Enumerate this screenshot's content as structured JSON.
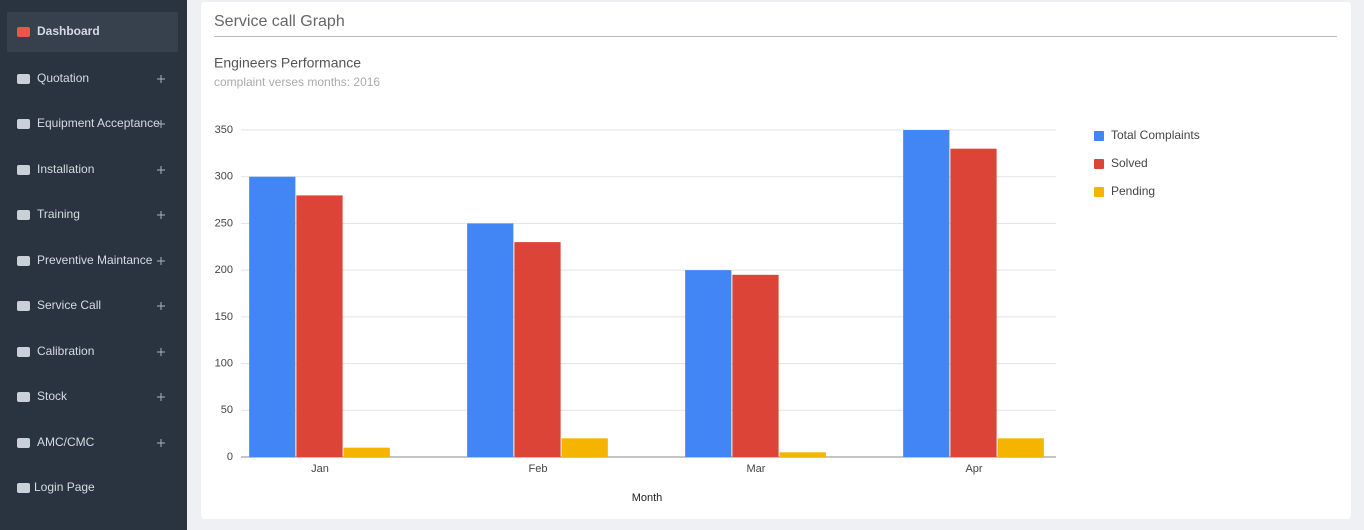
{
  "sidebar": {
    "items": [
      "Dashboard",
      "Quotation",
      "Equipment Acceptance",
      "Installation",
      "Training",
      "Preventive Maintance",
      "Service Call",
      "Calibration",
      "Stock",
      "AMC/CMC",
      "Login Page"
    ]
  },
  "panel": {
    "title": "Service call Graph"
  },
  "chart_data": {
    "type": "bar",
    "title": "Engineers Performance",
    "subtitle": "complaint verses months: 2016",
    "x_label": "Month",
    "categories": [
      "Jan",
      "Feb",
      "Mar",
      "Apr"
    ],
    "series": [
      {
        "name": "Total Complaints",
        "color": "#4285f4",
        "values": [
          300,
          250,
          200,
          350
        ]
      },
      {
        "name": "Solved",
        "color": "#db4437",
        "values": [
          280,
          230,
          195,
          330
        ]
      },
      {
        "name": "Pending",
        "color": "#f4b400",
        "values": [
          10,
          20,
          5,
          20
        ]
      }
    ],
    "ylim": [
      0,
      350
    ],
    "yticks": [
      0,
      50,
      100,
      150,
      200,
      250,
      300,
      350
    ],
    "grid": true,
    "legend": "right"
  }
}
